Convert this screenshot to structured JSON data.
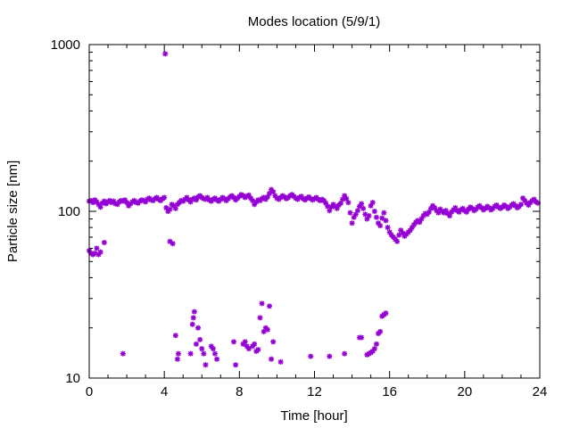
{
  "chart_data": {
    "type": "scatter",
    "title": "Modes location (5/9/1)",
    "xlabel": "Time [hour]",
    "ylabel": "Particle size [nm]",
    "xlim": [
      0,
      24
    ],
    "ylim": [
      10,
      1000
    ],
    "yscale": "log",
    "grid": false,
    "legend": "none",
    "xticks": [
      0,
      4,
      8,
      12,
      16,
      20,
      24
    ],
    "xtick_labels": [
      "0",
      "4",
      "8",
      "12",
      "16",
      "20",
      "24"
    ],
    "yticks": [
      10,
      100,
      1000
    ],
    "ytick_labels": [
      "10",
      "100",
      "1000"
    ],
    "marker_color": "#9400d3",
    "series": [
      {
        "name": "",
        "points": [
          [
            0.0,
            115
          ],
          [
            0.1,
            116
          ],
          [
            0.2,
            113
          ],
          [
            0.3,
            117
          ],
          [
            0.4,
            114
          ],
          [
            0.5,
            110
          ],
          [
            0.6,
            106
          ],
          [
            0.7,
            112
          ],
          [
            0.8,
            115
          ],
          [
            0.9,
            111
          ],
          [
            1.0,
            114
          ],
          [
            1.1,
            116
          ],
          [
            1.2,
            113
          ],
          [
            1.3,
            115
          ],
          [
            1.4,
            111
          ],
          [
            1.5,
            110
          ],
          [
            1.6,
            114
          ],
          [
            1.7,
            116
          ],
          [
            1.8,
            115
          ],
          [
            1.9,
            117
          ],
          [
            2.0,
            113
          ],
          [
            2.1,
            108
          ],
          [
            2.2,
            111
          ],
          [
            2.3,
            114
          ],
          [
            2.4,
            116
          ],
          [
            2.5,
            113
          ],
          [
            2.6,
            112
          ],
          [
            2.7,
            115
          ],
          [
            2.8,
            117
          ],
          [
            2.9,
            116
          ],
          [
            3.0,
            114
          ],
          [
            3.1,
            118
          ],
          [
            3.2,
            120
          ],
          [
            3.3,
            117
          ],
          [
            3.4,
            116
          ],
          [
            3.5,
            119
          ],
          [
            3.6,
            121
          ],
          [
            3.7,
            118
          ],
          [
            3.8,
            116
          ],
          [
            3.9,
            119
          ],
          [
            4.0,
            121
          ],
          [
            4.1,
            105
          ],
          [
            4.2,
            100
          ],
          [
            4.3,
            103
          ],
          [
            4.4,
            110
          ],
          [
            4.5,
            108
          ],
          [
            4.6,
            104
          ],
          [
            4.7,
            110
          ],
          [
            4.8,
            113
          ],
          [
            4.9,
            116
          ],
          [
            5.0,
            115
          ],
          [
            5.1,
            118
          ],
          [
            5.2,
            121
          ],
          [
            5.3,
            117
          ],
          [
            5.4,
            114
          ],
          [
            5.5,
            118
          ],
          [
            5.6,
            120
          ],
          [
            5.7,
            117
          ],
          [
            5.8,
            122
          ],
          [
            5.9,
            124
          ],
          [
            6.0,
            121
          ],
          [
            6.1,
            119
          ],
          [
            6.2,
            118
          ],
          [
            6.3,
            121
          ],
          [
            6.4,
            117
          ],
          [
            6.5,
            115
          ],
          [
            6.6,
            118
          ],
          [
            6.7,
            120
          ],
          [
            6.8,
            117
          ],
          [
            6.9,
            115
          ],
          [
            7.0,
            118
          ],
          [
            7.1,
            121
          ],
          [
            7.2,
            119
          ],
          [
            7.3,
            116
          ],
          [
            7.4,
            119
          ],
          [
            7.5,
            122
          ],
          [
            7.6,
            124
          ],
          [
            7.7,
            121
          ],
          [
            7.8,
            117
          ],
          [
            7.9,
            120
          ],
          [
            8.0,
            123
          ],
          [
            8.1,
            126
          ],
          [
            8.2,
            124
          ],
          [
            8.3,
            121
          ],
          [
            8.4,
            123
          ],
          [
            8.5,
            125
          ],
          [
            8.6,
            120
          ],
          [
            8.7,
            116
          ],
          [
            8.8,
            110
          ],
          [
            8.9,
            114
          ],
          [
            9.0,
            117
          ],
          [
            9.1,
            116
          ],
          [
            9.2,
            119
          ],
          [
            9.3,
            121
          ],
          [
            9.4,
            118
          ],
          [
            9.5,
            122
          ],
          [
            9.6,
            128
          ],
          [
            9.7,
            135
          ],
          [
            9.8,
            131
          ],
          [
            9.9,
            124
          ],
          [
            10.0,
            120
          ],
          [
            10.1,
            118
          ],
          [
            10.2,
            121
          ],
          [
            10.3,
            124
          ],
          [
            10.4,
            122
          ],
          [
            10.5,
            119
          ],
          [
            10.6,
            121
          ],
          [
            10.7,
            124
          ],
          [
            10.8,
            126
          ],
          [
            10.9,
            123
          ],
          [
            11.0,
            120
          ],
          [
            11.1,
            118
          ],
          [
            11.2,
            121
          ],
          [
            11.3,
            123
          ],
          [
            11.4,
            119
          ],
          [
            11.5,
            117
          ],
          [
            11.6,
            120
          ],
          [
            11.7,
            122
          ],
          [
            11.8,
            119
          ],
          [
            11.9,
            117
          ],
          [
            12.0,
            119
          ],
          [
            12.1,
            121
          ],
          [
            12.2,
            118
          ],
          [
            12.3,
            116
          ],
          [
            12.4,
            118
          ],
          [
            12.5,
            116
          ],
          [
            12.6,
            112
          ],
          [
            12.7,
            107
          ],
          [
            12.8,
            101
          ],
          [
            12.9,
            106
          ],
          [
            13.0,
            110
          ],
          [
            13.1,
            107
          ],
          [
            13.2,
            104
          ],
          [
            13.3,
            109
          ],
          [
            13.4,
            112
          ],
          [
            13.5,
            118
          ],
          [
            13.6,
            124
          ],
          [
            13.7,
            119
          ],
          [
            13.8,
            113
          ],
          [
            13.9,
            98
          ],
          [
            14.0,
            85
          ],
          [
            14.1,
            92
          ],
          [
            14.2,
            96
          ],
          [
            14.3,
            101
          ],
          [
            14.4,
            107
          ],
          [
            14.5,
            111
          ],
          [
            14.6,
            104
          ],
          [
            14.7,
            96
          ],
          [
            14.8,
            90
          ],
          [
            14.9,
            94
          ],
          [
            15.0,
            108
          ],
          [
            15.1,
            113
          ],
          [
            15.2,
            100
          ],
          [
            15.3,
            92
          ],
          [
            15.4,
            85
          ],
          [
            15.5,
            82
          ],
          [
            15.6,
            91
          ],
          [
            15.7,
            98
          ],
          [
            15.8,
            88
          ],
          [
            15.9,
            80
          ],
          [
            16.0,
            75
          ],
          [
            16.1,
            72
          ],
          [
            16.2,
            70
          ],
          [
            16.3,
            68
          ],
          [
            16.4,
            66
          ],
          [
            16.5,
            72
          ],
          [
            16.6,
            77
          ],
          [
            16.7,
            74
          ],
          [
            16.8,
            71
          ],
          [
            16.9,
            73
          ],
          [
            17.0,
            75
          ],
          [
            17.1,
            77
          ],
          [
            17.2,
            80
          ],
          [
            17.3,
            83
          ],
          [
            17.4,
            86
          ],
          [
            17.5,
            88
          ],
          [
            17.6,
            86
          ],
          [
            17.7,
            90
          ],
          [
            17.8,
            94
          ],
          [
            17.9,
            97
          ],
          [
            18.0,
            96
          ],
          [
            18.1,
            99
          ],
          [
            18.2,
            104
          ],
          [
            18.3,
            108
          ],
          [
            18.4,
            105
          ],
          [
            18.5,
            101
          ],
          [
            18.6,
            98
          ],
          [
            18.7,
            103
          ],
          [
            18.8,
            100
          ],
          [
            18.9,
            98
          ],
          [
            19.0,
            101
          ],
          [
            19.1,
            97
          ],
          [
            19.2,
            94
          ],
          [
            19.3,
            99
          ],
          [
            19.4,
            102
          ],
          [
            19.5,
            105
          ],
          [
            19.6,
            101
          ],
          [
            19.7,
            99
          ],
          [
            19.8,
            102
          ],
          [
            19.9,
            104
          ],
          [
            20.0,
            101
          ],
          [
            20.1,
            99
          ],
          [
            20.2,
            103
          ],
          [
            20.3,
            106
          ],
          [
            20.4,
            104
          ],
          [
            20.5,
            101
          ],
          [
            20.6,
            103
          ],
          [
            20.7,
            106
          ],
          [
            20.8,
            108
          ],
          [
            20.9,
            105
          ],
          [
            21.0,
            102
          ],
          [
            21.1,
            104
          ],
          [
            21.2,
            107
          ],
          [
            21.3,
            105
          ],
          [
            21.4,
            102
          ],
          [
            21.5,
            104
          ],
          [
            21.6,
            107
          ],
          [
            21.7,
            109
          ],
          [
            21.8,
            106
          ],
          [
            21.9,
            104
          ],
          [
            22.0,
            106
          ],
          [
            22.1,
            109
          ],
          [
            22.2,
            107
          ],
          [
            22.3,
            104
          ],
          [
            22.4,
            106
          ],
          [
            22.5,
            109
          ],
          [
            22.6,
            111
          ],
          [
            22.7,
            108
          ],
          [
            22.8,
            105
          ],
          [
            22.9,
            107
          ],
          [
            23.0,
            110
          ],
          [
            23.1,
            120
          ],
          [
            23.2,
            116
          ],
          [
            23.3,
            112
          ],
          [
            23.4,
            109
          ],
          [
            23.5,
            113
          ],
          [
            23.6,
            116
          ],
          [
            23.7,
            118
          ],
          [
            23.8,
            114
          ],
          [
            23.9,
            112
          ],
          [
            0.0,
            58
          ],
          [
            0.1,
            56
          ],
          [
            0.2,
            55
          ],
          [
            0.3,
            56
          ],
          [
            0.4,
            60
          ],
          [
            0.5,
            55
          ],
          [
            0.6,
            57
          ],
          [
            0.8,
            65
          ],
          [
            4.05,
            880
          ],
          [
            4.3,
            66
          ],
          [
            4.45,
            64
          ],
          [
            1.8,
            14
          ],
          [
            4.6,
            18
          ],
          [
            4.7,
            13
          ],
          [
            4.75,
            14
          ],
          [
            5.4,
            14
          ],
          [
            5.5,
            21
          ],
          [
            5.55,
            23
          ],
          [
            5.6,
            25
          ],
          [
            5.7,
            16
          ],
          [
            5.8,
            20
          ],
          [
            5.9,
            17
          ],
          [
            6.0,
            15
          ],
          [
            6.1,
            14
          ],
          [
            6.2,
            12
          ],
          [
            6.5,
            15.5
          ],
          [
            6.6,
            15
          ],
          [
            6.7,
            14
          ],
          [
            6.8,
            13
          ],
          [
            7.7,
            16.5
          ],
          [
            7.8,
            12
          ],
          [
            8.2,
            16
          ],
          [
            8.3,
            16.5
          ],
          [
            8.4,
            15.5
          ],
          [
            8.5,
            15
          ],
          [
            8.7,
            15.5
          ],
          [
            8.8,
            16
          ],
          [
            8.9,
            14.5
          ],
          [
            9.0,
            14.8
          ],
          [
            9.1,
            23
          ],
          [
            9.2,
            28
          ],
          [
            9.3,
            19
          ],
          [
            9.4,
            20
          ],
          [
            9.5,
            19.5
          ],
          [
            9.6,
            27
          ],
          [
            9.7,
            13
          ],
          [
            9.8,
            16.5
          ],
          [
            10.2,
            12.5
          ],
          [
            11.8,
            13.5
          ],
          [
            12.8,
            13.5
          ],
          [
            13.6,
            14
          ],
          [
            14.4,
            17.5
          ],
          [
            14.5,
            17.5
          ],
          [
            14.8,
            13.8
          ],
          [
            14.9,
            14
          ],
          [
            15.0,
            14.2
          ],
          [
            15.1,
            14.5
          ],
          [
            15.2,
            15
          ],
          [
            15.3,
            16
          ],
          [
            15.4,
            18.5
          ],
          [
            15.5,
            19
          ],
          [
            15.6,
            23.5
          ],
          [
            15.7,
            24
          ],
          [
            15.8,
            24.5
          ]
        ]
      }
    ]
  }
}
